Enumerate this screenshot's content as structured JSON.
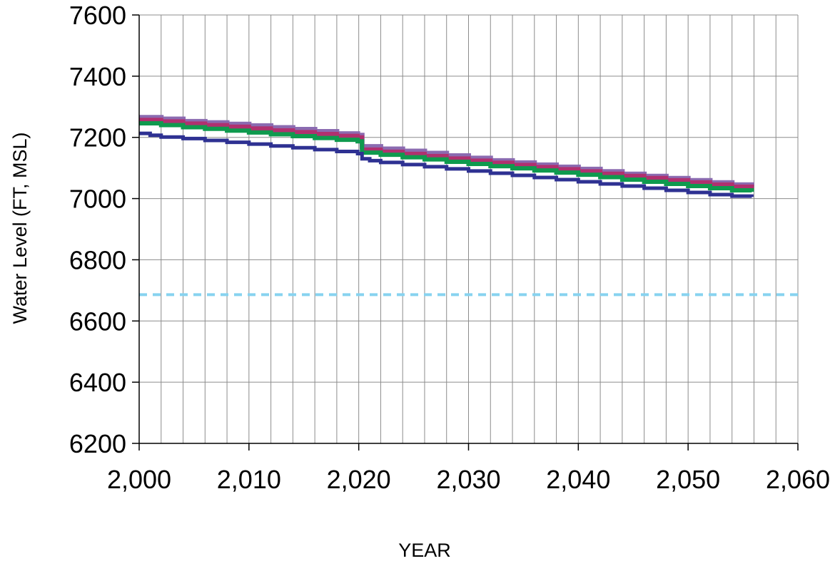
{
  "chart_data": {
    "type": "line",
    "xlabel": "YEAR",
    "ylabel": "Water Level (FT, MSL)",
    "xlim": [
      2000,
      2060
    ],
    "ylim": [
      6200,
      7600
    ],
    "x_ticks": [
      2000,
      2010,
      2020,
      2030,
      2040,
      2050,
      2060
    ],
    "x_tick_labels": [
      "2,000",
      "2,010",
      "2,020",
      "2,030",
      "2,040",
      "2,050",
      "2,060"
    ],
    "y_ticks": [
      6200,
      6400,
      6600,
      6800,
      7000,
      7200,
      7400,
      7600
    ],
    "y_tick_labels": [
      "6200",
      "6400",
      "6600",
      "6800",
      "7000",
      "7200",
      "7400",
      "7600"
    ],
    "x_minor_grid_step": 2,
    "grid": true,
    "legend": "none",
    "series": [
      {
        "color": "#8b6bb1",
        "style": "step",
        "width": 7,
        "x": [
          2000,
          2002,
          2004,
          2006,
          2008,
          2010,
          2012,
          2014,
          2016,
          2018,
          2019.9,
          2020.3,
          2022,
          2024,
          2026,
          2028,
          2030,
          2032,
          2034,
          2036,
          2038,
          2040,
          2042,
          2044,
          2046,
          2048,
          2050,
          2052,
          2054,
          2055.8
        ],
        "y": [
          7265,
          7260,
          7252,
          7248,
          7243,
          7238,
          7232,
          7226,
          7219,
          7212,
          7207,
          7170,
          7162,
          7155,
          7148,
          7140,
          7132,
          7124,
          7117,
          7110,
          7103,
          7096,
          7088,
          7080,
          7073,
          7066,
          7059,
          7052,
          7045,
          7040
        ]
      },
      {
        "color": "#b0306f",
        "style": "step",
        "width": 6,
        "x": [
          2000,
          2002,
          2004,
          2006,
          2008,
          2010,
          2012,
          2014,
          2016,
          2018,
          2019.9,
          2020.3,
          2022,
          2024,
          2026,
          2028,
          2030,
          2032,
          2034,
          2036,
          2038,
          2040,
          2042,
          2044,
          2046,
          2048,
          2050,
          2052,
          2054,
          2055.8
        ],
        "y": [
          7257,
          7252,
          7245,
          7240,
          7235,
          7229,
          7223,
          7217,
          7211,
          7205,
          7200,
          7160,
          7153,
          7146,
          7139,
          7131,
          7124,
          7117,
          7110,
          7103,
          7096,
          7089,
          7081,
          7074,
          7067,
          7060,
          7053,
          7046,
          7039,
          7034
        ]
      },
      {
        "color": "#0f9a4e",
        "style": "step",
        "width": 6,
        "x": [
          2000,
          2002,
          2004,
          2006,
          2008,
          2010,
          2012,
          2014,
          2016,
          2018,
          2019.9,
          2020.3,
          2022,
          2024,
          2026,
          2028,
          2030,
          2032,
          2034,
          2036,
          2038,
          2040,
          2042,
          2044,
          2046,
          2048,
          2050,
          2052,
          2054,
          2055.8
        ],
        "y": [
          7246,
          7240,
          7233,
          7228,
          7222,
          7216,
          7210,
          7204,
          7198,
          7192,
          7187,
          7150,
          7143,
          7135,
          7128,
          7120,
          7113,
          7106,
          7099,
          7092,
          7085,
          7078,
          7070,
          7062,
          7055,
          7048,
          7041,
          7034,
          7027,
          7022
        ]
      },
      {
        "color": "#2e3192",
        "style": "step",
        "width": 5,
        "x": [
          2000,
          2001,
          2002,
          2004,
          2006,
          2008,
          2010,
          2012,
          2014,
          2016,
          2018,
          2019.9,
          2020.3,
          2021,
          2022,
          2024,
          2026,
          2028,
          2030,
          2032,
          2034,
          2036,
          2038,
          2040,
          2042,
          2044,
          2046,
          2048,
          2050,
          2052,
          2054,
          2055.8
        ],
        "y": [
          7213,
          7207,
          7201,
          7196,
          7190,
          7184,
          7178,
          7172,
          7166,
          7160,
          7154,
          7147,
          7130,
          7124,
          7118,
          7111,
          7104,
          7097,
          7090,
          7083,
          7076,
          7069,
          7062,
          7055,
          7048,
          7041,
          7034,
          7027,
          7020,
          7013,
          7008,
          7005
        ]
      },
      {
        "color": "#87d3f0",
        "style": "dashed",
        "width": 4,
        "x": [
          2000,
          2060
        ],
        "y": [
          6686,
          6686
        ]
      }
    ]
  }
}
